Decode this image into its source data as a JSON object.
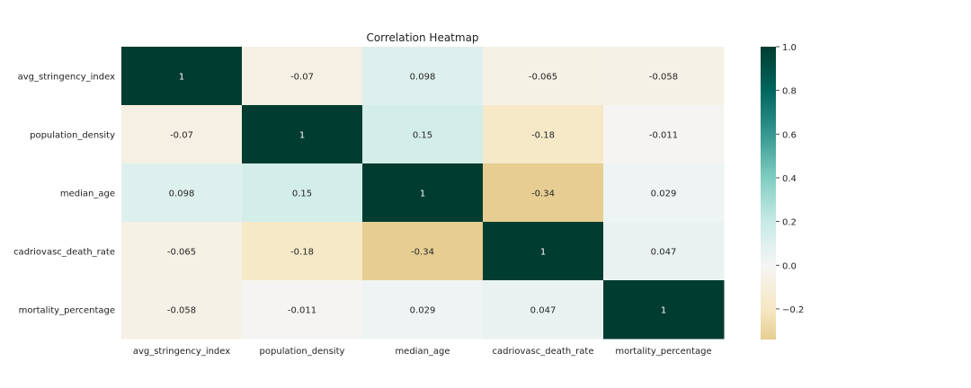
{
  "chart_data": {
    "type": "heatmap",
    "title": "Correlation Heatmap",
    "rows": [
      "avg_stringency_index",
      "population_density",
      "median_age",
      "cadriovasc_death_rate",
      "mortality_percentage"
    ],
    "columns": [
      "avg_stringency_index",
      "population_density",
      "median_age",
      "cadriovasc_death_rate",
      "mortality_percentage"
    ],
    "values": [
      [
        1,
        -0.07,
        0.098,
        -0.065,
        -0.058
      ],
      [
        -0.07,
        1,
        0.15,
        -0.18,
        -0.011
      ],
      [
        0.098,
        0.15,
        1,
        -0.34,
        0.029
      ],
      [
        -0.065,
        -0.18,
        -0.34,
        1,
        0.047
      ],
      [
        -0.058,
        -0.011,
        0.029,
        0.047,
        1
      ]
    ],
    "annotations": [
      [
        "1",
        "-0.07",
        "0.098",
        "-0.065",
        "-0.058"
      ],
      [
        "-0.07",
        "1",
        "0.15",
        "-0.18",
        "-0.011"
      ],
      [
        "0.098",
        "0.15",
        "1",
        "-0.34",
        "0.029"
      ],
      [
        "-0.065",
        "-0.18",
        "-0.34",
        "1",
        "0.047"
      ],
      [
        "-0.058",
        "-0.011",
        "0.029",
        "0.047",
        "1"
      ]
    ],
    "colormap": "BrBG",
    "vmin": -0.34,
    "vmax": 1.0,
    "colorbar": {
      "ticks": [
        1.0,
        0.8,
        0.6,
        0.4,
        0.2,
        0.0,
        -0.2
      ],
      "tick_labels": [
        "1.0",
        "0.8",
        "0.6",
        "0.4",
        "0.2",
        "0.0",
        "−0.2"
      ],
      "placement": "right"
    },
    "colors": {
      "low": "#e5cd8f",
      "mid": "#f5f5f5",
      "high": "#003c30"
    }
  }
}
